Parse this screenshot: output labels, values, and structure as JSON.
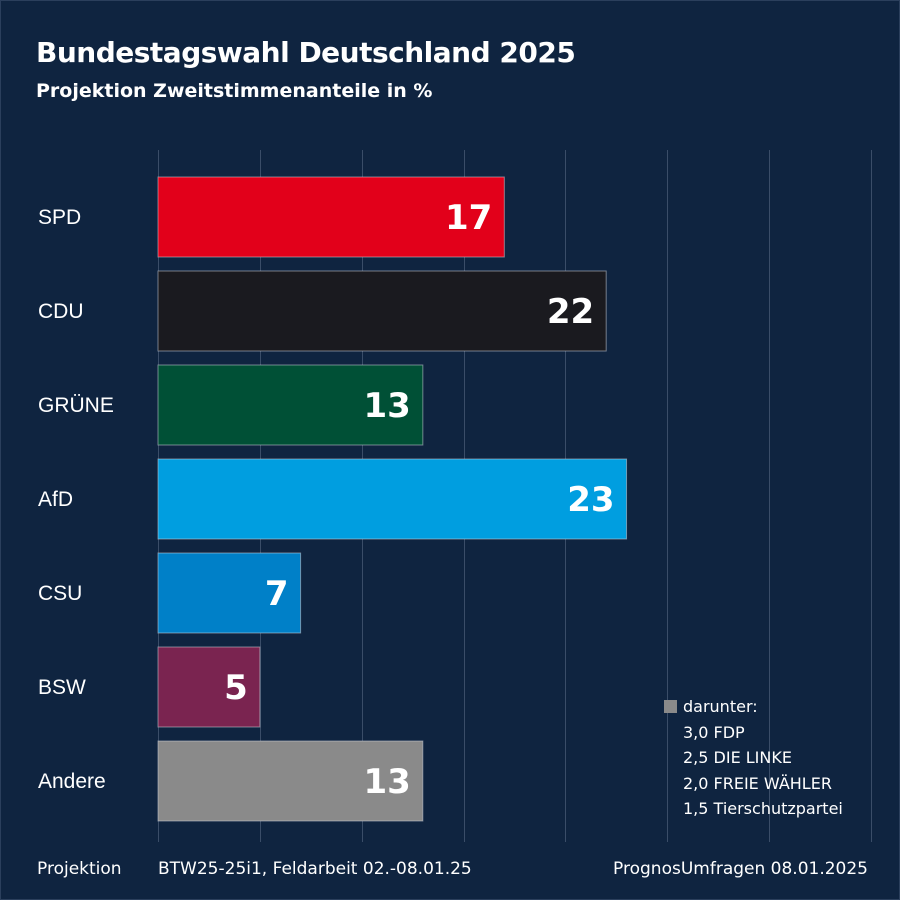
{
  "chart_data": {
    "type": "bar",
    "orientation": "horizontal",
    "title": "Bundestagswahl Deutschland 2025",
    "subtitle": "Projektion Zweitstimmenanteile in %",
    "categories": [
      "SPD",
      "CDU",
      "GRÜNE",
      "AfD",
      "CSU",
      "BSW",
      "Andere"
    ],
    "values": [
      17,
      22,
      13,
      23,
      7,
      5,
      13
    ],
    "colors": [
      "#e2001a",
      "#1a1a1f",
      "#005036",
      "#009ee0",
      "#0080c8",
      "#7a2450",
      "#8a8a8a"
    ],
    "xlim": [
      0,
      35
    ],
    "gridlines": [
      0,
      5,
      10,
      15,
      20,
      25,
      30,
      35
    ],
    "grid": true
  },
  "note": {
    "heading": "darunter:",
    "items": [
      "3,0 FDP",
      "2,5 DIE LINKE",
      "2,0 FREIE WÄHLER",
      "1,5 Tierschutzpartei"
    ]
  },
  "footer": {
    "left": "Projektion",
    "middle": "BTW25-25i1, Feldarbeit 02.-08.01.25",
    "right": "PrognosUmfragen 08.01.2025"
  }
}
